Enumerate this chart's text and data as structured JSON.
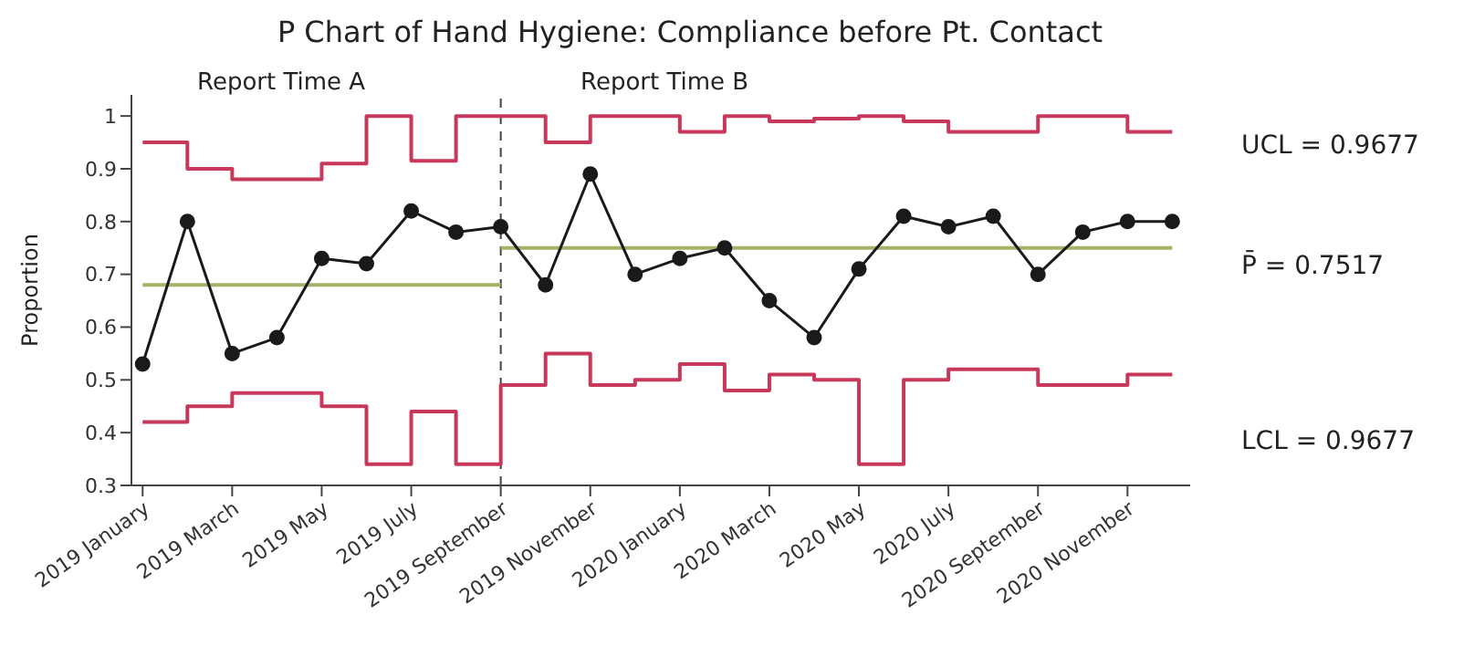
{
  "chart_data": {
    "type": "line",
    "title": "P Chart of Hand Hygiene: Compliance before Pt. Contact",
    "ylabel": "Proportion",
    "categories": [
      "2019 January",
      null,
      "2019 March",
      null,
      "2019 May",
      null,
      "2019 July",
      null,
      "2019 September",
      null,
      "2019 November",
      null,
      "2020 January",
      null,
      "2020 March",
      null,
      "2020 May",
      null,
      "2020 July",
      null,
      "2020 September",
      null,
      "2020 November",
      null
    ],
    "series": [
      {
        "type": "step",
        "color": "#c8385a",
        "marker": "none",
        "values": [
          0.95,
          0.9,
          0.88,
          0.88,
          0.91,
          1.0,
          0.915,
          1.0,
          1.0,
          0.95,
          1.0,
          1.0,
          0.97,
          1.0,
          0.99,
          0.995,
          1.0,
          0.99,
          0.97,
          0.97,
          1.0,
          1.0,
          0.97,
          0.97
        ]
      },
      {
        "type": "step",
        "color": "#c8385a",
        "marker": "none",
        "values": [
          0.42,
          0.45,
          0.475,
          0.475,
          0.45,
          0.34,
          0.44,
          0.34,
          0.49,
          0.55,
          0.49,
          0.5,
          0.53,
          0.48,
          0.51,
          0.5,
          0.34,
          0.5,
          0.52,
          0.52,
          0.49,
          0.49,
          0.51,
          0.51
        ]
      },
      {
        "color": "#a9b06a",
        "marker": "none",
        "values": [
          0.68,
          0.68,
          0.68,
          0.68,
          0.68,
          0.68,
          0.68,
          0.68,
          0.68,
          null,
          null,
          null,
          null,
          null,
          null,
          null,
          null,
          null,
          null,
          null,
          null,
          null,
          null,
          null
        ]
      },
      {
        "color": "#a9b06a",
        "marker": "none",
        "values": [
          null,
          null,
          null,
          null,
          null,
          null,
          null,
          null,
          0.75,
          0.75,
          0.75,
          0.75,
          0.75,
          0.75,
          0.75,
          0.75,
          0.75,
          0.75,
          0.75,
          0.75,
          0.75,
          0.75,
          0.75,
          0.75
        ]
      },
      {
        "color": "#1a1a1a",
        "marker": "circle",
        "values": [
          0.53,
          0.8,
          0.55,
          0.58,
          0.73,
          0.72,
          0.82,
          0.78,
          0.79,
          0.68,
          0.89,
          0.7,
          0.73,
          0.75,
          0.65,
          0.58,
          0.71,
          0.81,
          0.79,
          0.81,
          0.7,
          0.78,
          0.8,
          0.8
        ]
      }
    ],
    "ylim": [
      0.3,
      1.04
    ],
    "yticks": [
      0.3,
      0.4,
      0.5,
      0.6,
      0.7,
      0.8,
      0.9,
      1
    ],
    "ref_lines": [
      {
        "axis": "x",
        "value": "2019 September",
        "color": "#444444",
        "line_style": "dashed"
      }
    ],
    "annotations": [
      "Report Time A",
      "Report Time B",
      "UCL = 0.9677",
      "P̄ = 0.7517",
      "LCL = 0.9677"
    ],
    "grid": false,
    "legend": false
  }
}
